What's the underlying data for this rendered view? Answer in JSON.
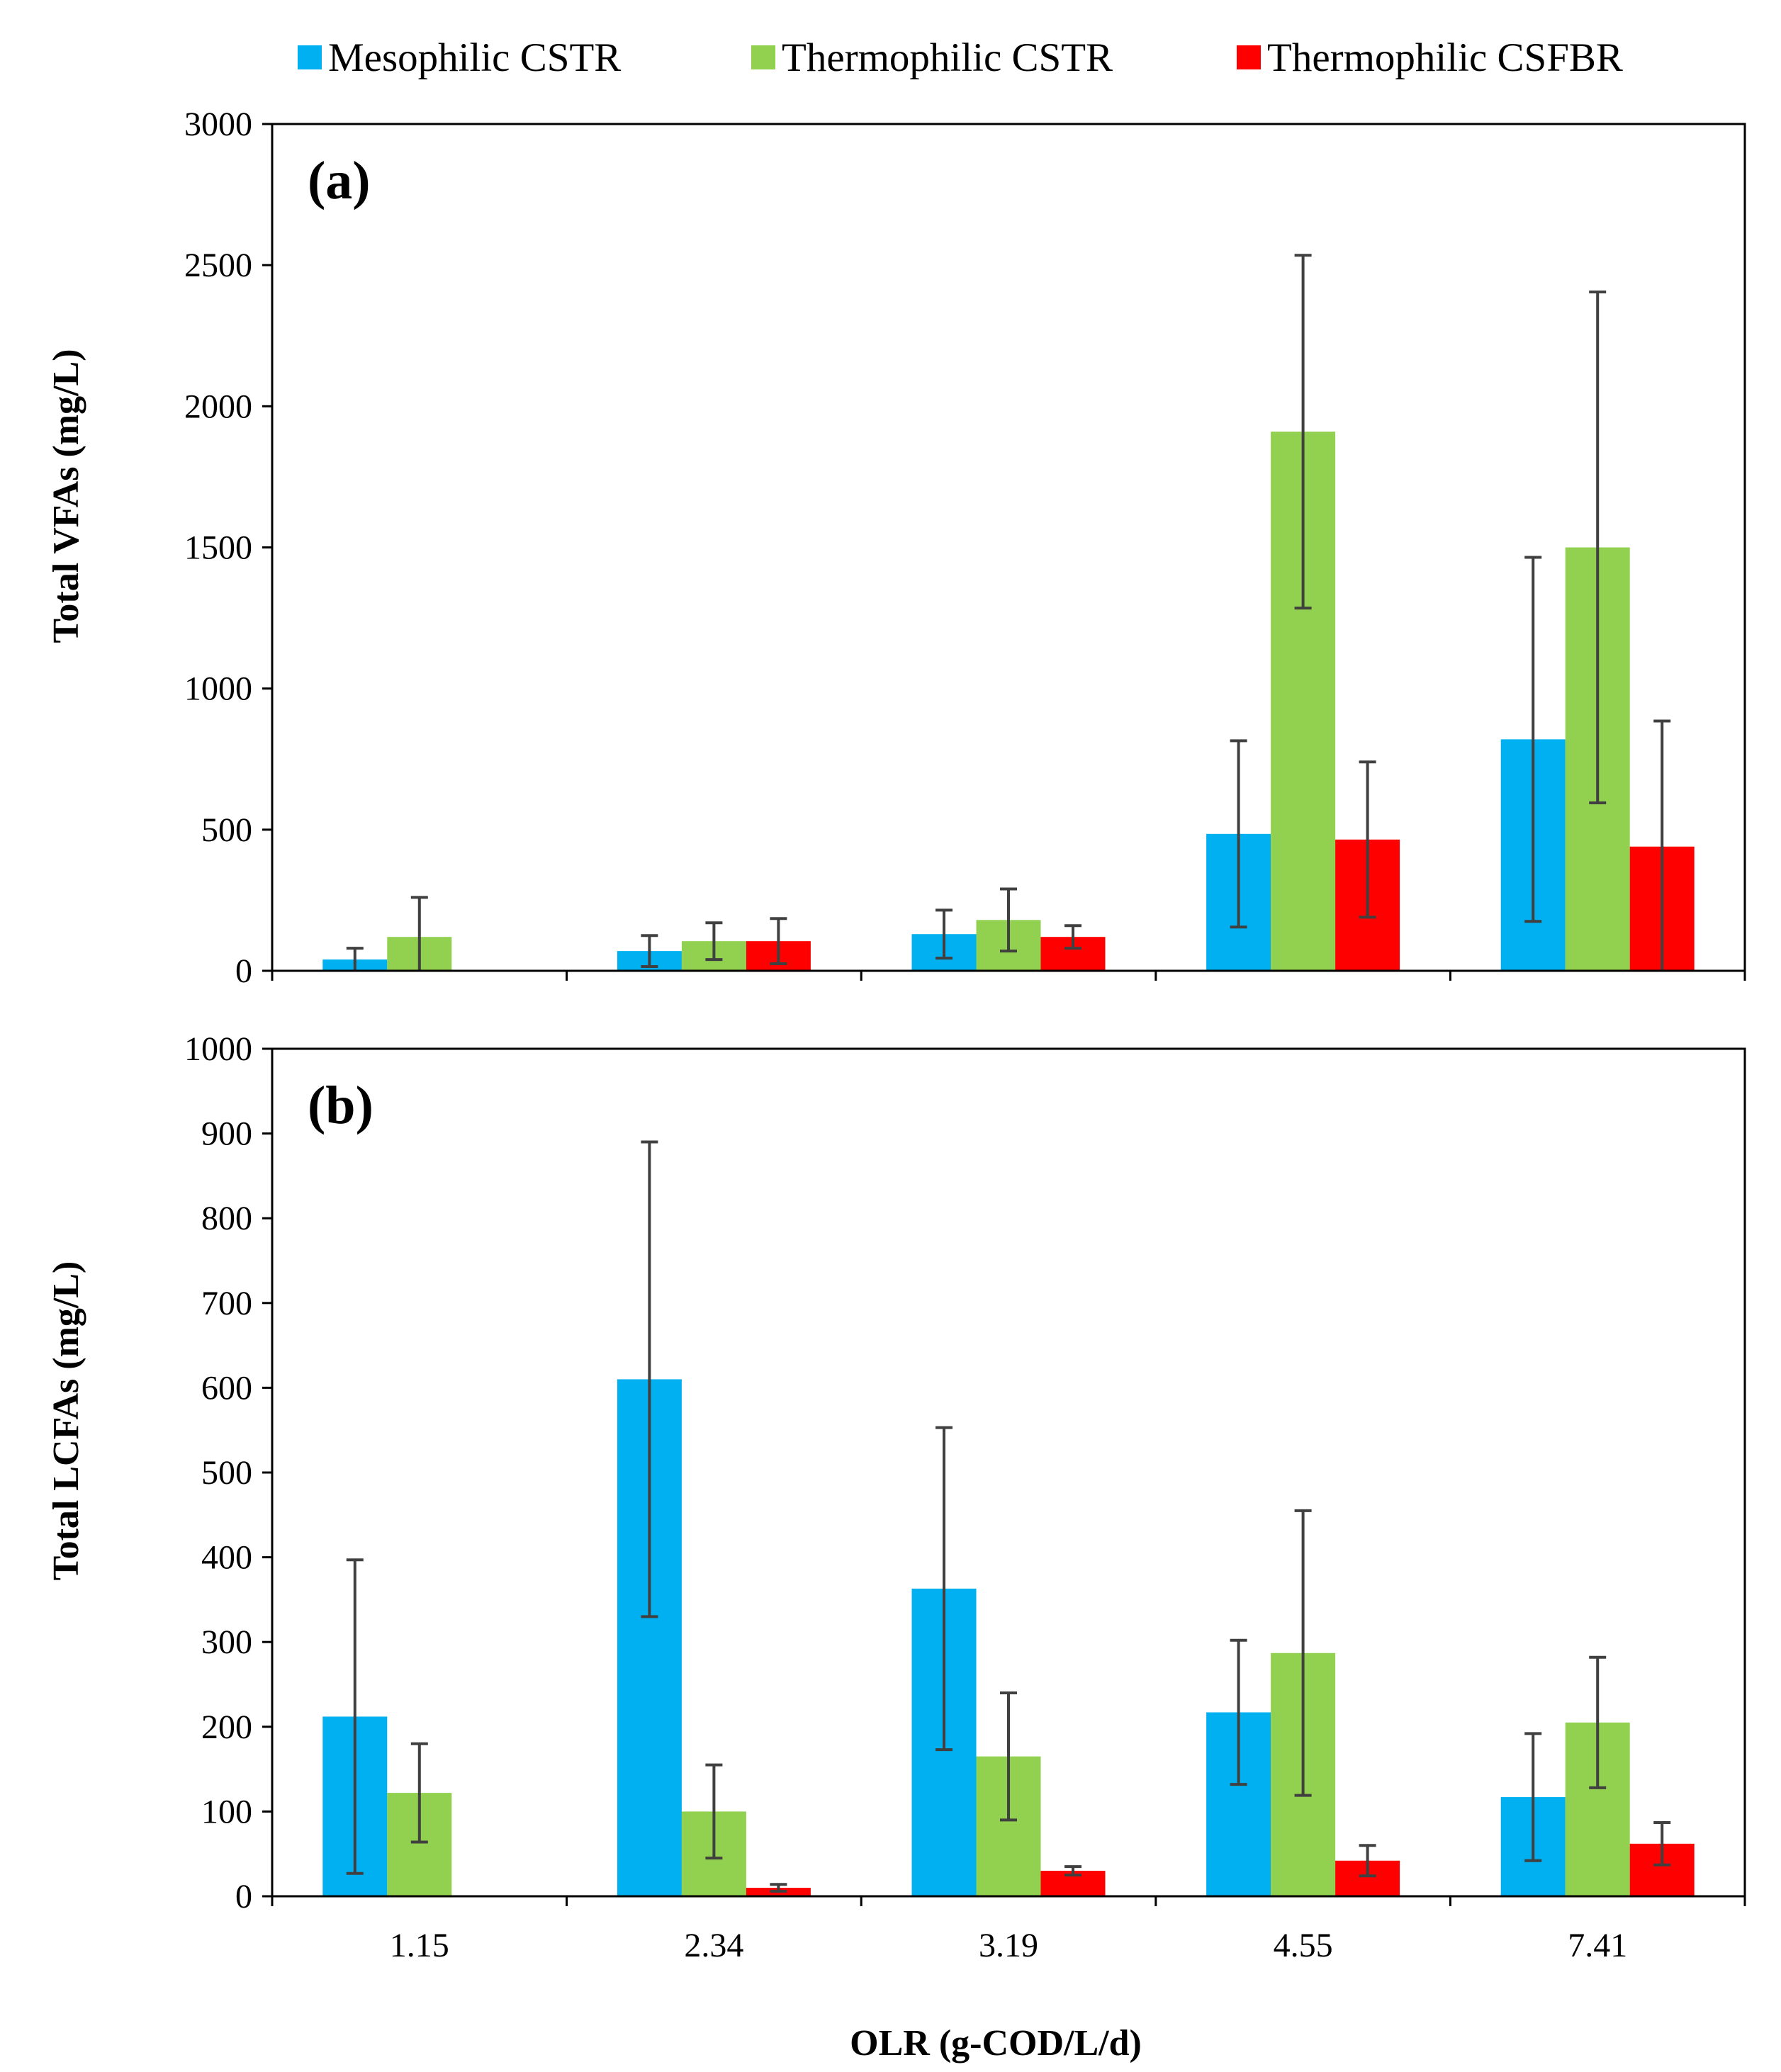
{
  "colors": {
    "mesophilic_cstr": "#00B0F0",
    "thermophilic_cstr": "#92D050",
    "thermophilic_csfbr": "#FF0000",
    "error_bar": "#404040",
    "axis": "#000000"
  },
  "legend": [
    "Mesophilic CSTR",
    "Thermophilic CSTR",
    "Thermophilic CSFBR"
  ],
  "chart_data": [
    {
      "type": "bar",
      "panel_label": "(a)",
      "title": "",
      "xlabel": "",
      "ylabel": "Total VFAs (mg/L)",
      "categories": [
        "1.15",
        "2.34",
        "3.19",
        "4.55",
        "7.41"
      ],
      "ylim": [
        0,
        3000
      ],
      "yticks": [
        "0",
        "500",
        "1000",
        "1500",
        "2000",
        "2500",
        "3000"
      ],
      "show_x_tick_labels": false,
      "series": [
        {
          "name": "Mesophilic CSTR",
          "values": [
            40,
            70,
            130,
            485,
            820
          ],
          "errors": [
            40,
            55,
            85,
            330,
            645
          ]
        },
        {
          "name": "Thermophilic CSTR",
          "values": [
            120,
            105,
            180,
            1910,
            1500
          ],
          "errors": [
            140,
            65,
            110,
            625,
            905
          ]
        },
        {
          "name": "Thermophilic CSFBR",
          "values": [
            null,
            105,
            120,
            465,
            440
          ],
          "errors": [
            null,
            80,
            40,
            275,
            445
          ]
        }
      ]
    },
    {
      "type": "bar",
      "panel_label": "(b)",
      "title": "",
      "xlabel": "OLR (g-COD/L/d)",
      "ylabel": "Total LCFAs (mg/L)",
      "categories": [
        "1.15",
        "2.34",
        "3.19",
        "4.55",
        "7.41"
      ],
      "ylim": [
        0,
        1000
      ],
      "yticks": [
        "0",
        "100",
        "200",
        "300",
        "400",
        "500",
        "600",
        "700",
        "800",
        "900",
        "1000"
      ],
      "show_x_tick_labels": true,
      "series": [
        {
          "name": "Mesophilic CSTR",
          "values": [
            212,
            610,
            363,
            217,
            117
          ],
          "errors": [
            185,
            280,
            190,
            85,
            75
          ]
        },
        {
          "name": "Thermophilic CSTR",
          "values": [
            122,
            100,
            165,
            287,
            205
          ],
          "errors": [
            58,
            55,
            75,
            168,
            77
          ]
        },
        {
          "name": "Thermophilic CSFBR",
          "values": [
            null,
            10,
            30,
            42,
            62
          ],
          "errors": [
            null,
            4,
            5,
            18,
            25
          ]
        }
      ]
    }
  ]
}
